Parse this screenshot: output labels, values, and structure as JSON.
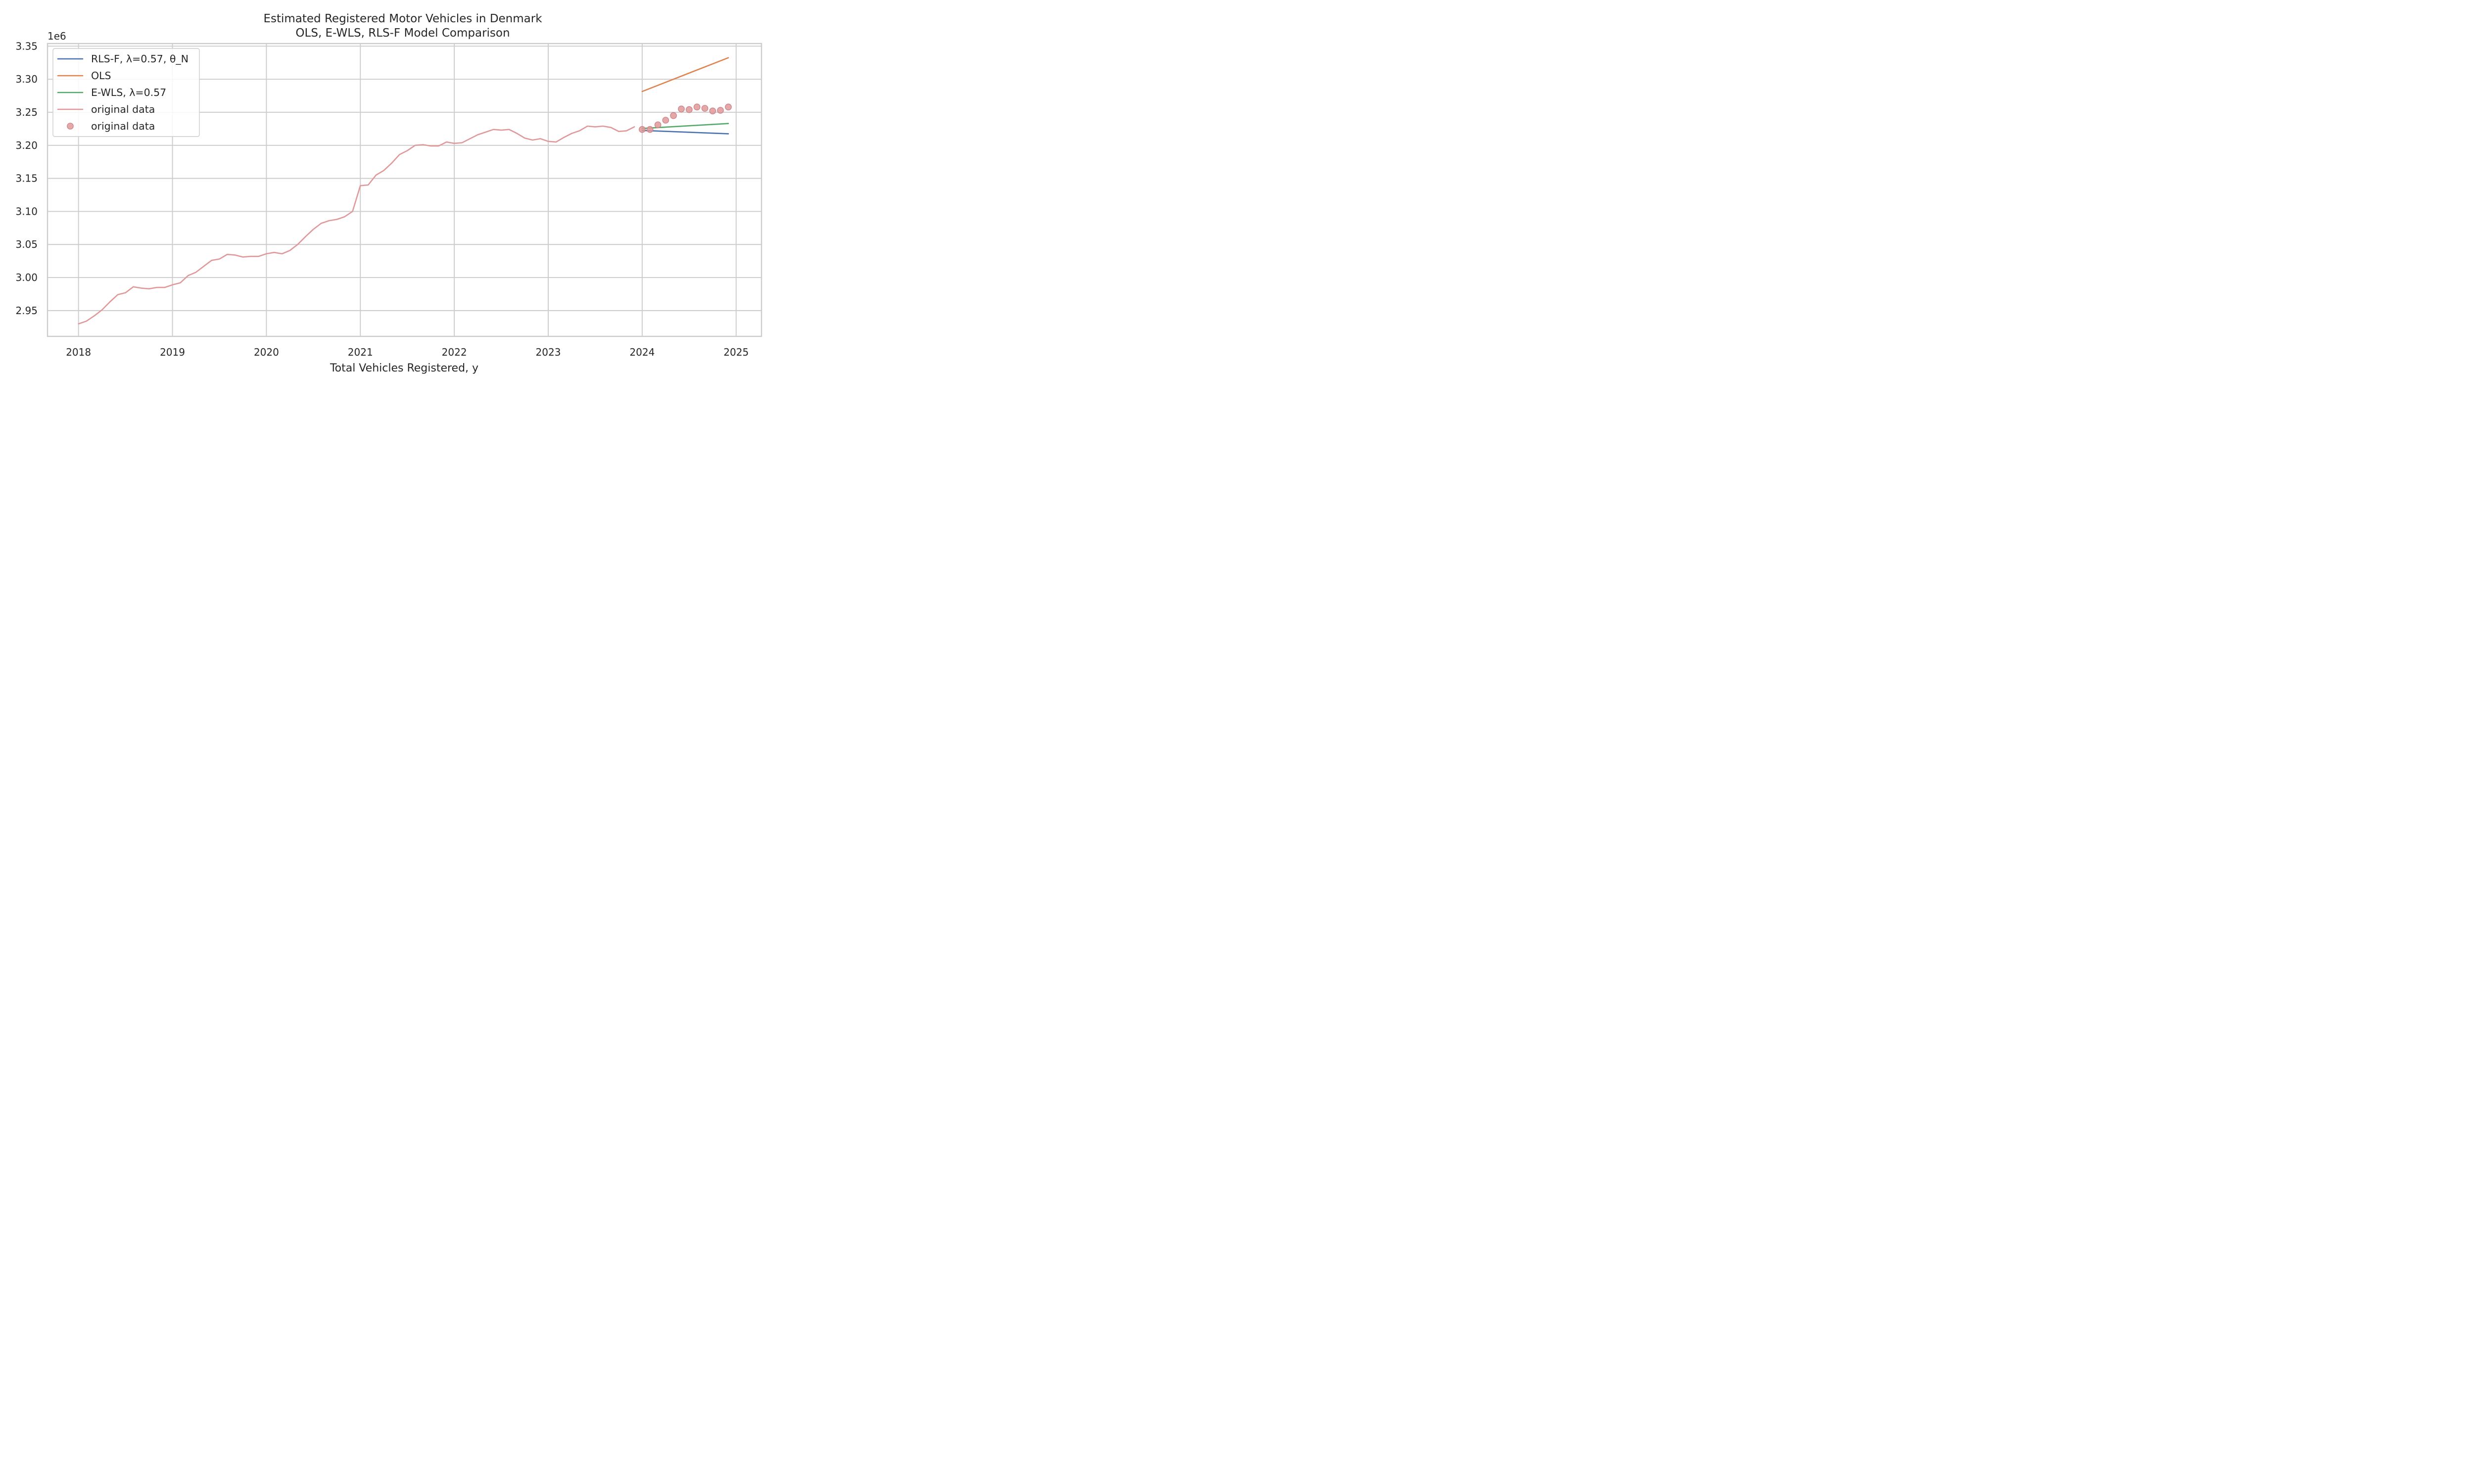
{
  "chart_data": {
    "type": "line",
    "title": "Estimated Registered Motor Vehicles in Denmark",
    "subtitle": "OLS, E-WLS, RLS-F Model Comparison",
    "xlabel": "Total Vehicles Registered, y",
    "ylabel": "",
    "y_offset_label": "1e6",
    "x_ticks": [
      "2018",
      "2019",
      "2020",
      "2021",
      "2022",
      "2023",
      "2024",
      "2025"
    ],
    "y_ticks": [
      "2.95",
      "3.00",
      "3.05",
      "3.10",
      "3.15",
      "3.20",
      "3.25",
      "3.30",
      "3.35"
    ],
    "xlim": [
      2017.67,
      2025.27
    ],
    "ylim": [
      2.911,
      3.354
    ],
    "grid": true,
    "legend_position": "upper-left",
    "series": [
      {
        "name": "RLS-F, λ=0.57, θ_N",
        "kind": "line",
        "color": "#4c72b0",
        "x": [
          2024.0,
          2024.917
        ],
        "y": [
          3.2225,
          3.2175
        ]
      },
      {
        "name": "OLS",
        "kind": "line",
        "color": "#dd8452",
        "x": [
          2024.0,
          2024.917
        ],
        "y": [
          3.2815,
          3.3325
        ]
      },
      {
        "name": "E-WLS, λ=0.57",
        "kind": "line",
        "color": "#55a868",
        "x": [
          2024.0,
          2024.917
        ],
        "y": [
          3.2255,
          3.233
        ]
      },
      {
        "name": "original data",
        "kind": "line",
        "color": "#e0999a",
        "x": [
          2018.0,
          2018.083,
          2018.167,
          2018.25,
          2018.333,
          2018.417,
          2018.5,
          2018.583,
          2018.667,
          2018.75,
          2018.833,
          2018.917,
          2019.0,
          2019.083,
          2019.167,
          2019.25,
          2019.333,
          2019.417,
          2019.5,
          2019.583,
          2019.667,
          2019.75,
          2019.833,
          2019.917,
          2020.0,
          2020.083,
          2020.167,
          2020.25,
          2020.333,
          2020.417,
          2020.5,
          2020.583,
          2020.667,
          2020.75,
          2020.833,
          2020.917,
          2021.0,
          2021.083,
          2021.167,
          2021.25,
          2021.333,
          2021.417,
          2021.5,
          2021.583,
          2021.667,
          2021.75,
          2021.833,
          2021.917,
          2022.0,
          2022.083,
          2022.167,
          2022.25,
          2022.333,
          2022.417,
          2022.5,
          2022.583,
          2022.667,
          2022.75,
          2022.833,
          2022.917,
          2023.0,
          2023.083,
          2023.167,
          2023.25,
          2023.333,
          2023.417,
          2023.5,
          2023.583,
          2023.667,
          2023.75,
          2023.833,
          2023.917
        ],
        "y": [
          2.93,
          2.934,
          2.942,
          2.951,
          2.963,
          2.974,
          2.977,
          2.986,
          2.984,
          2.983,
          2.985,
          2.985,
          2.989,
          2.992,
          3.003,
          3.008,
          3.017,
          3.026,
          3.028,
          3.035,
          3.034,
          3.031,
          3.032,
          3.032,
          3.036,
          3.038,
          3.036,
          3.041,
          3.05,
          3.062,
          3.073,
          3.082,
          3.086,
          3.088,
          3.092,
          3.1,
          3.139,
          3.14,
          3.155,
          3.162,
          3.173,
          3.186,
          3.192,
          3.2,
          3.201,
          3.199,
          3.199,
          3.205,
          3.203,
          3.204,
          3.21,
          3.216,
          3.22,
          3.224,
          3.223,
          3.224,
          3.218,
          3.211,
          3.208,
          3.21,
          3.206,
          3.205,
          3.212,
          3.218,
          3.222,
          3.229,
          3.228,
          3.229,
          3.227,
          3.221,
          3.222,
          3.228
        ]
      },
      {
        "name": "original data",
        "kind": "scatter",
        "color": "#e0999a",
        "x": [
          2024.0,
          2024.083,
          2024.167,
          2024.25,
          2024.333,
          2024.417,
          2024.5,
          2024.583,
          2024.667,
          2024.75,
          2024.833,
          2024.917
        ],
        "y": [
          3.224,
          3.224,
          3.231,
          3.238,
          3.245,
          3.255,
          3.254,
          3.258,
          3.256,
          3.252,
          3.253,
          3.258
        ]
      }
    ]
  }
}
